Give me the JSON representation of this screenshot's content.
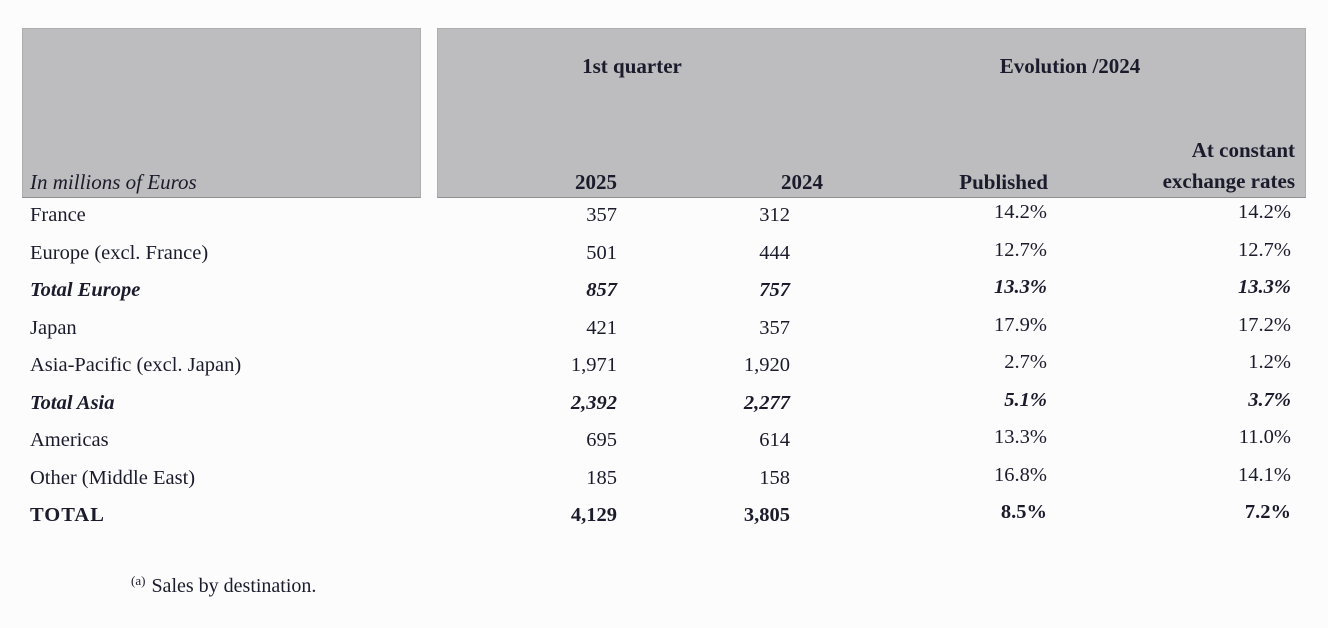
{
  "colors": {
    "header_fill": "#bdbdbf",
    "text": "#1b1b2c",
    "page_background": "#fcfcfd"
  },
  "table": {
    "unit_label": "In millions of Euros",
    "group_headers": [
      {
        "label": "1st quarter"
      },
      {
        "label": "Evolution /2024"
      }
    ],
    "columns": [
      {
        "label": "2025"
      },
      {
        "label": "2024"
      },
      {
        "label": "Published"
      },
      {
        "label": "At constant exchange rates",
        "line1": "At constant",
        "line2": "exchange rates"
      }
    ],
    "rows": [
      {
        "label": "France",
        "q1_2025": "357",
        "q1_2024": "312",
        "published": "14.2%",
        "at_constant": "14.2%",
        "type": "region"
      },
      {
        "label": "Europe (excl. France)",
        "q1_2025": "501",
        "q1_2024": "444",
        "published": "12.7%",
        "at_constant": "12.7%",
        "type": "region"
      },
      {
        "label": "Total Europe",
        "q1_2025": "857",
        "q1_2024": "757",
        "published": "13.3%",
        "at_constant": "13.3%",
        "type": "subtotal"
      },
      {
        "label": "Japan",
        "q1_2025": "421",
        "q1_2024": "357",
        "published": "17.9%",
        "at_constant": "17.2%",
        "type": "region"
      },
      {
        "label": "Asia-Pacific (excl. Japan)",
        "q1_2025": "1,971",
        "q1_2024": "1,920",
        "published": "2.7%",
        "at_constant": "1.2%",
        "type": "region"
      },
      {
        "label": "Total Asia",
        "q1_2025": "2,392",
        "q1_2024": "2,277",
        "published": "5.1%",
        "at_constant": "3.7%",
        "type": "subtotal"
      },
      {
        "label": "Americas",
        "q1_2025": "695",
        "q1_2024": "614",
        "published": "13.3%",
        "at_constant": "11.0%",
        "type": "region"
      },
      {
        "label": "Other (Middle East)",
        "q1_2025": "185",
        "q1_2024": "158",
        "published": "16.8%",
        "at_constant": "14.1%",
        "type": "region"
      },
      {
        "label": "TOTAL",
        "q1_2025": "4,129",
        "q1_2024": "3,805",
        "published": "8.5%",
        "at_constant": "7.2%",
        "type": "total"
      }
    ],
    "footnote": {
      "marker": "(a)",
      "text": "Sales by destination."
    }
  }
}
